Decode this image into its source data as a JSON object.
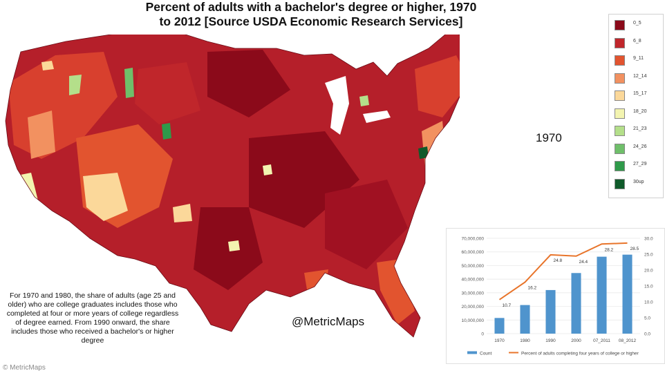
{
  "title": "Percent of adults with a bachelor's degree or higher, 1970 to 2012 [Source USDA Economic Research Services]",
  "year_label": "1970",
  "credit": "@MetricMaps",
  "watermark": "© MetricMaps",
  "footnote": "For 1970 and 1980, the share of adults (age 25 and older) who are college graduates includes those who completed at four or more years of college regardless of degree earned. From 1990 onward, the share includes those who received a bachelor's or higher degree",
  "legend": [
    {
      "label": "0_5",
      "color": "#8b0a1a"
    },
    {
      "label": "6_8",
      "color": "#c0262b"
    },
    {
      "label": "9_11",
      "color": "#e2542f"
    },
    {
      "label": "12_14",
      "color": "#f29160"
    },
    {
      "label": "15_17",
      "color": "#fbd89a"
    },
    {
      "label": "18_20",
      "color": "#f3f4b0"
    },
    {
      "label": "21_23",
      "color": "#b4df8a"
    },
    {
      "label": "24_26",
      "color": "#6fbf6a"
    },
    {
      "label": "27_29",
      "color": "#2f9a4a"
    },
    {
      "label": "30up",
      "color": "#0f5a2a"
    }
  ],
  "chart_data": {
    "type": "bar",
    "categories": [
      "1970",
      "1980",
      "1990",
      "2000",
      "07_2011",
      "08_2012"
    ],
    "series": [
      {
        "name": "Count",
        "kind": "bar",
        "axis": "left",
        "color": "#4f94cd",
        "values": [
          11500000,
          21000000,
          32000000,
          44500000,
          56500000,
          58000000
        ]
      },
      {
        "name": "Percent of adults completing four years of college or higher",
        "kind": "line",
        "axis": "right",
        "color": "#e8742a",
        "values": [
          10.7,
          16.2,
          24.8,
          24.4,
          28.2,
          28.5
        ]
      }
    ],
    "left_ticks": [
      "0",
      "10,000,000",
      "20,000,000",
      "30,000,000",
      "40,000,000",
      "50,000,000",
      "60,000,000",
      "70,000,000"
    ],
    "right_ticks": [
      "0.0",
      "5.0",
      "10.0",
      "15.0",
      "20.0",
      "25.0",
      "30.0"
    ],
    "ylim_left": [
      0,
      70000000
    ],
    "ylim_right": [
      0,
      30
    ],
    "legend_position": "bottom"
  }
}
